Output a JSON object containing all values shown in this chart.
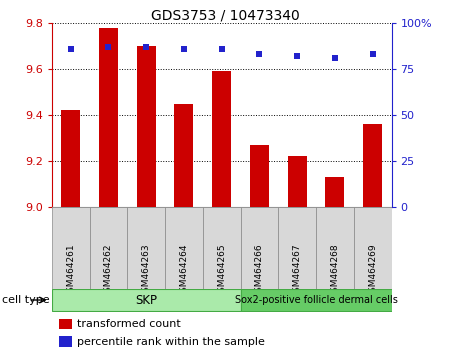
{
  "title": "GDS3753 / 10473340",
  "samples": [
    "GSM464261",
    "GSM464262",
    "GSM464263",
    "GSM464264",
    "GSM464265",
    "GSM464266",
    "GSM464267",
    "GSM464268",
    "GSM464269"
  ],
  "transformed_counts": [
    9.42,
    9.78,
    9.7,
    9.45,
    9.59,
    9.27,
    9.22,
    9.13,
    9.36
  ],
  "percentile_ranks": [
    86,
    87,
    87,
    86,
    86,
    83,
    82,
    81,
    83
  ],
  "ylim_left": [
    9.0,
    9.8
  ],
  "ylim_right": [
    0,
    100
  ],
  "yticks_left": [
    9.0,
    9.2,
    9.4,
    9.6,
    9.8
  ],
  "yticks_right": [
    0,
    25,
    50,
    75,
    100
  ],
  "bar_color": "#cc0000",
  "dot_color": "#2222cc",
  "bar_width": 0.5,
  "skp_count": 5,
  "sox2_count": 4,
  "skp_color_light": "#bbeebb",
  "skp_color_dark": "#55cc55",
  "sox2_color_light": "#88dd88",
  "sox2_color_dark": "#44bb44",
  "cell_type_label": "cell type",
  "legend_bar_label": "transformed count",
  "legend_dot_label": "percentile rank within the sample",
  "bar_label_color": "#cc0000",
  "dot_label_color": "#2222cc",
  "left_tick_color": "#cc0000",
  "right_tick_color": "#2222cc",
  "sample_box_color": "#d8d8d8",
  "background_color": "#ffffff"
}
